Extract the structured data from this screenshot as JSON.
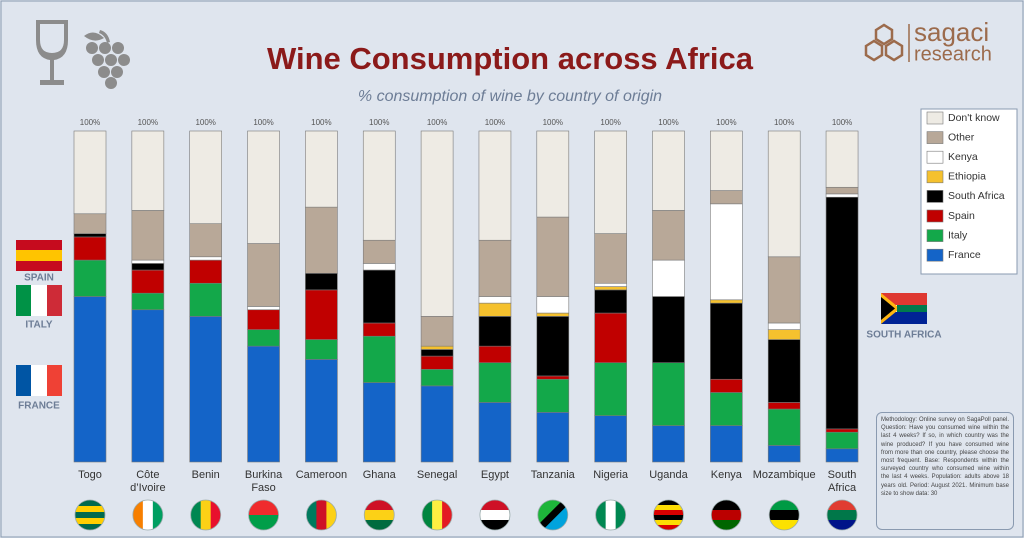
{
  "chart_data": {
    "type": "stacked_bar",
    "title": "Wine Consumption across Africa",
    "subtitle": "% consumption of wine by country of origin",
    "categories": [
      "Togo",
      "Côte\nd’Ivoire",
      "Benin",
      "Burkina\nFaso",
      "Cameroon",
      "Ghana",
      "Senegal",
      "Egypt",
      "Tanzania",
      "Nigeria",
      "Uganda",
      "Kenya",
      "Mozambique",
      "South\nAfrica"
    ],
    "series": [
      {
        "name": "France",
        "color": "#1464c8",
        "values": [
          50,
          46,
          44,
          35,
          31,
          24,
          23,
          18,
          15,
          14,
          11,
          11,
          5,
          4
        ]
      },
      {
        "name": "Italy",
        "color": "#13a84a",
        "values": [
          11,
          5,
          10,
          5,
          6,
          14,
          5,
          12,
          10,
          16,
          19,
          10,
          11,
          5
        ]
      },
      {
        "name": "Spain",
        "color": "#c00000",
        "values": [
          7,
          7,
          7,
          6,
          15,
          4,
          4,
          5,
          1,
          15,
          0,
          4,
          2,
          1
        ]
      },
      {
        "name": "South Africa",
        "color": "#000000",
        "values": [
          1,
          2,
          0,
          0,
          5,
          16,
          2,
          9,
          18,
          7,
          20,
          23,
          19,
          70
        ]
      },
      {
        "name": "Ethiopia",
        "color": "#f5c12e",
        "values": [
          0,
          0,
          0,
          0,
          0,
          0,
          1,
          4,
          1,
          1,
          0,
          1,
          3,
          0
        ]
      },
      {
        "name": "Kenya",
        "color": "#ffffff",
        "values": [
          0,
          1,
          1,
          1,
          0,
          2,
          0,
          2,
          5,
          1,
          11,
          29,
          2,
          1
        ]
      },
      {
        "name": "Other",
        "color": "#b8a898",
        "values": [
          6,
          15,
          10,
          19,
          20,
          7,
          9,
          17,
          24,
          15,
          15,
          4,
          20,
          2
        ]
      },
      {
        "name": "Don't know",
        "color": "#eeebe4",
        "values": [
          25,
          24,
          28,
          34,
          23,
          33,
          56,
          33,
          26,
          31,
          24,
          18,
          38,
          17
        ]
      }
    ],
    "totals": [
      100,
      100,
      100,
      100,
      100,
      100,
      100,
      100,
      100,
      100,
      100,
      100,
      100,
      100
    ],
    "total_labels": [
      "100%",
      "100%",
      "100%",
      "100%",
      "100%",
      "100%",
      "100%",
      "100%",
      "100%",
      "100%",
      "100%",
      "100%",
      "100%",
      "100%"
    ],
    "ylim": [
      0,
      100
    ],
    "side_labels": {
      "spain": "SPAIN",
      "italy": "ITALY",
      "france": "FRANCE",
      "south_africa": "SOUTH AFRICA"
    },
    "brand": {
      "line1": "sagaci",
      "line2": "research"
    },
    "methodology": "Methodology: Online survey on SagaPoll panel. Question: Have you consumed wine within the last 4 weeks? If so, in which country was the wine produced? If you have consumed wine from more than one country, please choose the most frequent. Base: Respondents within the surveyed country who consumed wine within the last 4 weeks. Population: adults above 18 years old. Period: August 2021. Minimum base size to show data: 30"
  }
}
